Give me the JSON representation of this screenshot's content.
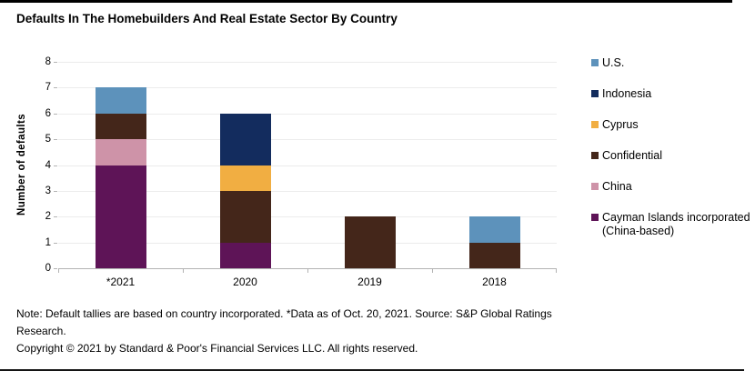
{
  "chart_data": {
    "type": "bar",
    "stacked": true,
    "title": "Defaults In The Homebuilders And Real Estate Sector By Country",
    "ylabel": "Number of defaults",
    "xlabel": "",
    "ylim": [
      0,
      8
    ],
    "yticks": [
      0,
      1,
      2,
      3,
      4,
      5,
      6,
      7,
      8
    ],
    "grid": "horizontal",
    "legend_position": "right",
    "categories": [
      "*2021",
      "2020",
      "2019",
      "2018"
    ],
    "series": [
      {
        "name": "U.S.",
        "color": "#5D92BB",
        "values": [
          1,
          0,
          0,
          1
        ]
      },
      {
        "name": "Indonesia",
        "color": "#132C5E",
        "values": [
          0,
          2,
          0,
          0
        ]
      },
      {
        "name": "Cyprus",
        "color": "#F1AE42",
        "values": [
          0,
          1,
          0,
          0
        ]
      },
      {
        "name": "Confidential",
        "color": "#44261A",
        "values": [
          1,
          2,
          2,
          1
        ]
      },
      {
        "name": "China",
        "color": "#CE93A8",
        "values": [
          1,
          0,
          0,
          0
        ]
      },
      {
        "name": "Cayman Islands incorporated (China-based)",
        "color": "#5E1457",
        "values": [
          4,
          1,
          0,
          0
        ]
      }
    ],
    "stack_order_bottom_to_top": [
      "Cayman Islands incorporated (China-based)",
      "China",
      "Confidential",
      "Cyprus",
      "Indonesia",
      "U.S."
    ],
    "bar_totals": {
      "*2021": 7,
      "2020": 6,
      "2019": 2,
      "2018": 2
    }
  },
  "footer": {
    "note": "Note: Default tallies are based on country incorporated. *Data as of Oct. 20, 2021. Source: S&P Global Ratings Research.",
    "copyright": "Copyright © 2021 by Standard & Poor's Financial Services LLC. All rights reserved."
  }
}
